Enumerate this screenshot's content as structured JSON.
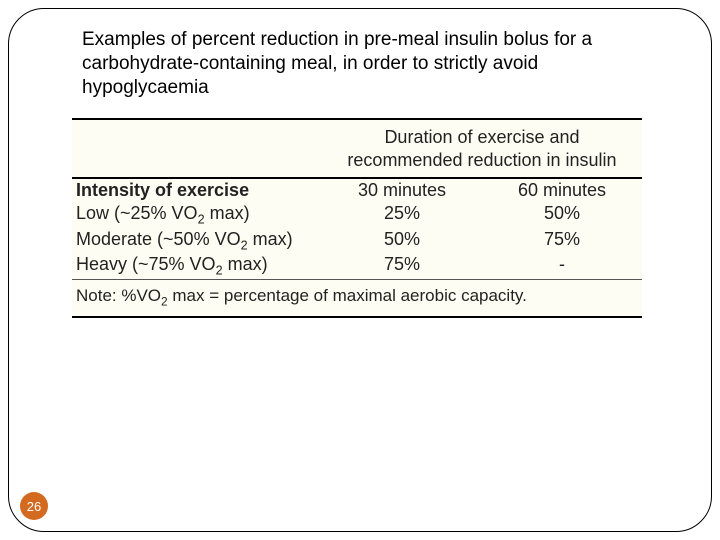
{
  "title": "Examples of percent reduction in pre-meal insulin bolus for a carbohydrate-containing meal, in order to strictly avoid hypoglycaemia",
  "table": {
    "background_color": "#fefdf3",
    "header": "Duration of exercise and recommended reduction in insulin",
    "intensity_label": "Intensity of exercise",
    "col_30": "30 minutes",
    "col_60": "60 minutes",
    "rows": [
      {
        "label": "Low (~25% VO",
        "sub": "2",
        "tail": " max)",
        "v30": "25%",
        "v60": "50%"
      },
      {
        "label": "Moderate (~50% VO",
        "sub": "2",
        "tail": " max)",
        "v30": "50%",
        "v60": "75%"
      },
      {
        "label": "Heavy (~75% VO",
        "sub": "2",
        "tail": " max)",
        "v30": "75%",
        "v60": "-"
      }
    ],
    "note_prefix": "Note: %VO",
    "note_sub": "2",
    "note_tail": " max = percentage of maximal aerobic capacity."
  },
  "page_number": "26",
  "badge_color": "#d46a1f"
}
